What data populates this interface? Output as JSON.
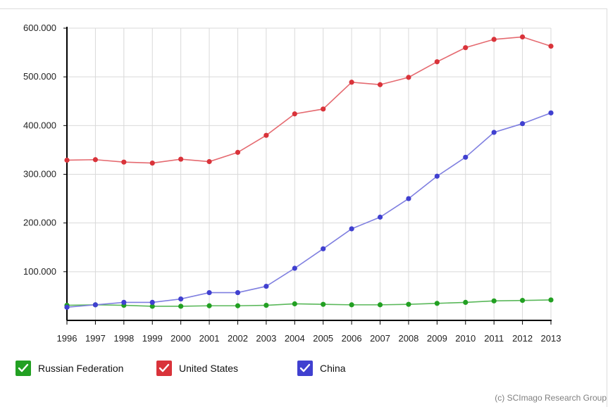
{
  "chart_data": {
    "type": "line",
    "x": [
      "1996",
      "1997",
      "1998",
      "1999",
      "2000",
      "2001",
      "2002",
      "2003",
      "2004",
      "2005",
      "2006",
      "2007",
      "2008",
      "2009",
      "2010",
      "2011",
      "2012",
      "2013"
    ],
    "y_ticks": [
      "600.000",
      "500.000",
      "400.000",
      "300.000",
      "200.000",
      "100.000"
    ],
    "y_tick_values": [
      600000,
      500000,
      400000,
      300000,
      200000,
      100000
    ],
    "ylim": [
      0,
      600000
    ],
    "grid": true,
    "legend_position": "bottom-left",
    "series": [
      {
        "name": "Russian Federation",
        "color": "#22a022",
        "values": [
          31000,
          32000,
          31000,
          29000,
          29000,
          30000,
          30000,
          31000,
          34000,
          33000,
          32000,
          32000,
          33000,
          35000,
          37000,
          40000,
          41000,
          42000
        ]
      },
      {
        "name": "United States",
        "color": "#d9333a",
        "values": [
          329000,
          330000,
          325000,
          323000,
          331000,
          326000,
          345000,
          380000,
          424000,
          434000,
          489000,
          484000,
          499000,
          531000,
          560000,
          577000,
          582000,
          563000
        ]
      },
      {
        "name": "China",
        "color": "#4040d0",
        "values": [
          27000,
          32000,
          37000,
          37000,
          44000,
          57000,
          57000,
          70000,
          107000,
          147000,
          188000,
          212000,
          250000,
          296000,
          335000,
          386000,
          404000,
          426000
        ]
      }
    ]
  },
  "credit": "(c) SCImago Research Group"
}
